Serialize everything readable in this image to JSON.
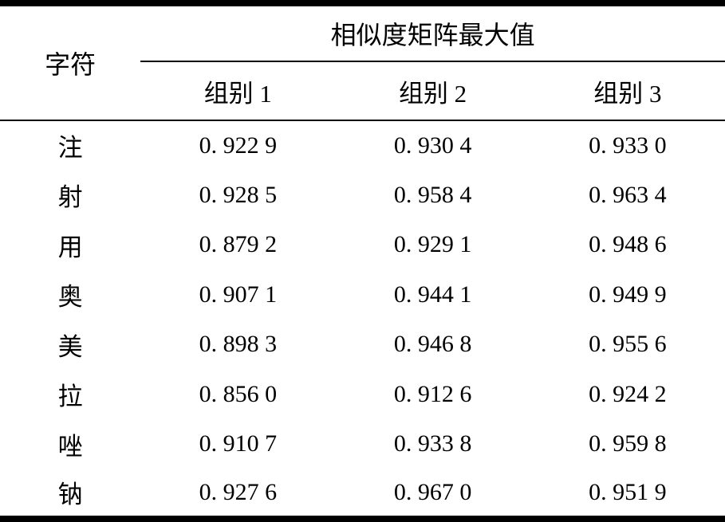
{
  "table": {
    "char_header": "字符",
    "span_header": "相似度矩阵最大值",
    "group_headers": [
      "组别 1",
      "组别 2",
      "组别 3"
    ],
    "rows": [
      {
        "char": "注",
        "values": [
          "0. 922 9",
          "0. 930 4",
          "0. 933 0"
        ]
      },
      {
        "char": "射",
        "values": [
          "0. 928 5",
          "0. 958 4",
          "0. 963 4"
        ]
      },
      {
        "char": "用",
        "values": [
          "0. 879 2",
          "0. 929 1",
          "0. 948 6"
        ]
      },
      {
        "char": "奥",
        "values": [
          "0. 907 1",
          "0. 944 1",
          "0. 949 9"
        ]
      },
      {
        "char": "美",
        "values": [
          "0. 898 3",
          "0. 946 8",
          "0. 955 6"
        ]
      },
      {
        "char": "拉",
        "values": [
          "0. 856 0",
          "0. 912 6",
          "0. 924 2"
        ]
      },
      {
        "char": "唑",
        "values": [
          "0. 910 7",
          "0. 933 8",
          "0. 959 8"
        ]
      },
      {
        "char": "钠",
        "values": [
          "0. 927 6",
          "0. 967 0",
          "0. 951 9"
        ]
      }
    ],
    "colors": {
      "rule": "#000000",
      "text": "#000000",
      "background": "#ffffff"
    }
  }
}
